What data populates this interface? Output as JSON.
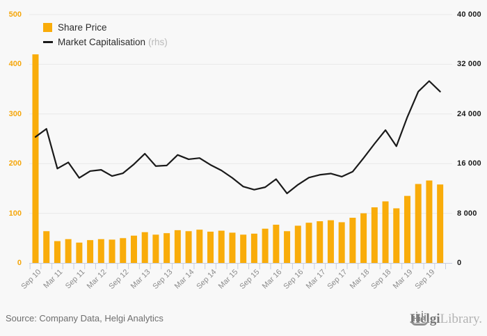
{
  "legend": {
    "share_price": "Share Price",
    "market_cap": "Market Capitalisation",
    "rhs_note": "(rhs)"
  },
  "footer": {
    "source": "Source: Company Data, Helgi Analytics",
    "logo_helgi": "Helgi",
    "logo_library": "Library."
  },
  "colors": {
    "bar": "#F9AC0A",
    "line": "#1A1A1A",
    "left_axis_label": "#F5A60A",
    "right_axis_label": "#1A1A1A",
    "x_label": "#8C8C8C",
    "grid": "#E8E8E8",
    "axis": "#C7CEE0",
    "background": "#F8F8F8",
    "legend_rhs": "#B9B9B9"
  },
  "chart_data": {
    "type": "bar",
    "subtype": "combo-bar-line",
    "title": "",
    "grid": "horizontal",
    "legend_position": "top-left",
    "categories": [
      "Sep 10",
      "Dec 10",
      "Mar 11",
      "Jun 11",
      "Sep 11",
      "Dec 11",
      "Mar 12",
      "Jun 12",
      "Sep 12",
      "Dec 12",
      "Mar 13",
      "Jun 13",
      "Sep 13",
      "Dec 13",
      "Mar 14",
      "Jun 14",
      "Sep 14",
      "Dec 14",
      "Mar 15",
      "Jun 15",
      "Sep 15",
      "Dec 15",
      "Mar 16",
      "Jun 16",
      "Sep 16",
      "Dec 16",
      "Mar 17",
      "Jun 17",
      "Sep 17",
      "Dec 17",
      "Mar 18",
      "Jun 18",
      "Sep 18",
      "Dec 18",
      "Mar 19",
      "Jun 19",
      "Sep 19",
      "Dec 19"
    ],
    "x_tick_labels": [
      "Sep 10",
      "Mar 11",
      "Sep 11",
      "Mar 12",
      "Sep 12",
      "Mar 13",
      "Sep 13",
      "Mar 14",
      "Sep 14",
      "Mar 15",
      "Sep 15",
      "Mar 16",
      "Sep 16",
      "Mar 17",
      "Sep 17",
      "Mar 18",
      "Sep 18",
      "Mar 19",
      "Sep 19"
    ],
    "label_every": 2,
    "series": [
      {
        "name": "Share Price",
        "type": "bar",
        "axis": "left",
        "values": [
          420,
          64,
          44,
          48,
          41,
          46,
          48,
          47,
          50,
          55,
          62,
          57,
          60,
          66,
          64,
          67,
          63,
          65,
          61,
          57,
          59,
          69,
          77,
          64,
          75,
          81,
          84,
          86,
          82,
          91,
          100,
          112,
          124,
          110,
          135,
          159,
          166,
          158
        ]
      },
      {
        "name": "Market Capitalisation (rhs)",
        "type": "line",
        "axis": "right",
        "values": [
          20300,
          21600,
          15200,
          16200,
          13700,
          14800,
          15000,
          14000,
          14450,
          15900,
          17600,
          15600,
          15700,
          17400,
          16700,
          16900,
          15800,
          14900,
          13700,
          12300,
          11800,
          12200,
          13500,
          11200,
          12600,
          13750,
          14200,
          14400,
          13900,
          14700,
          16900,
          19200,
          21400,
          18800,
          23500,
          27600,
          29300,
          27600
        ]
      }
    ],
    "left_axis": {
      "min": 0,
      "max": 500,
      "tick_labels": [
        "0",
        "100",
        "200",
        "300",
        "400",
        "500"
      ]
    },
    "right_axis": {
      "min": 0,
      "max": 40000,
      "tick_labels": [
        "0",
        "8 000",
        "16 000",
        "24 000",
        "32 000",
        "40 000"
      ]
    }
  }
}
